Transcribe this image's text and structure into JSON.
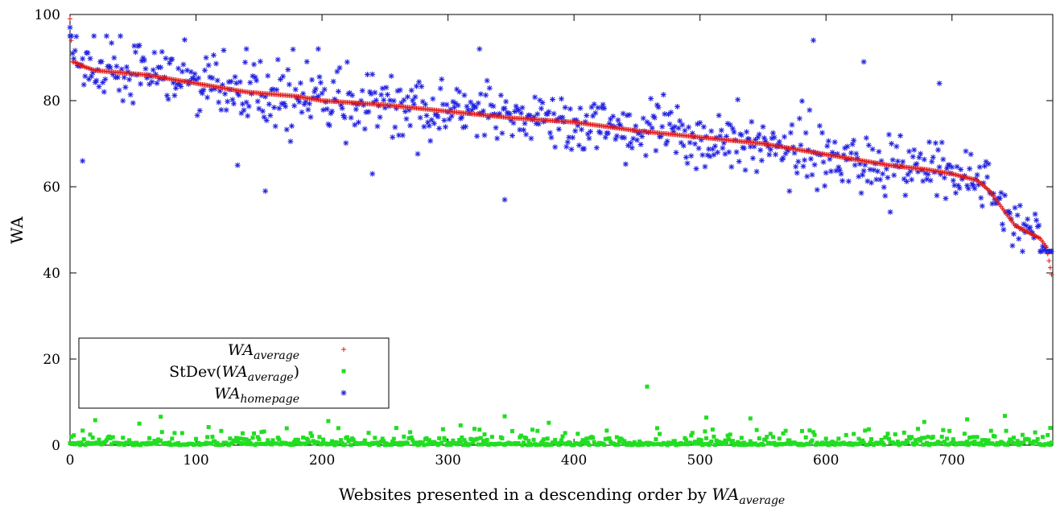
{
  "chart_data": {
    "type": "scatter",
    "xlabel": "Websites presented in a descending order by ",
    "xlabel_symbol": {
      "base": "WA",
      "sub": "average"
    },
    "ylabel": "WA",
    "xlim": [
      0,
      780
    ],
    "ylim": [
      0,
      100
    ],
    "x_ticks": [
      "0",
      "100",
      "200",
      "300",
      "400",
      "500",
      "600",
      "700"
    ],
    "y_ticks": [
      "0",
      "20",
      "40",
      "60",
      "80",
      "100"
    ],
    "grid": false,
    "legend_position": "bottom-left",
    "n_points": 780,
    "series": [
      {
        "name": {
          "base": "WA",
          "sub": "average"
        },
        "marker": "plus",
        "color": "#e01818",
        "x": [
          0,
          2,
          5,
          10,
          20,
          40,
          60,
          80,
          100,
          120,
          140,
          160,
          180,
          200,
          250,
          300,
          350,
          400,
          450,
          500,
          550,
          600,
          650,
          680,
          700,
          720,
          730,
          740,
          750,
          760,
          770,
          775,
          780
        ],
        "y": [
          99,
          89,
          88.8,
          88,
          87,
          86.5,
          86,
          85,
          84,
          83,
          82,
          81.5,
          81,
          80,
          79,
          77.5,
          76,
          75,
          73,
          71.5,
          70,
          67.5,
          65,
          64,
          63,
          61.5,
          59,
          55,
          51,
          49.5,
          48,
          46,
          38
        ]
      },
      {
        "name": {
          "text": "StDev(",
          "base": "WA",
          "sub": "average",
          "after": ")"
        },
        "marker": "square",
        "color": "#22dd22",
        "typical_range": [
          0,
          3
        ],
        "outliers": [
          {
            "x": 20,
            "y": 5.8
          },
          {
            "x": 55,
            "y": 5
          },
          {
            "x": 72,
            "y": 6.6
          },
          {
            "x": 110,
            "y": 4.2
          },
          {
            "x": 205,
            "y": 5.6
          },
          {
            "x": 310,
            "y": 4.6
          },
          {
            "x": 345,
            "y": 6.7
          },
          {
            "x": 380,
            "y": 5.2
          },
          {
            "x": 458,
            "y": 13.6
          },
          {
            "x": 505,
            "y": 6.4
          },
          {
            "x": 540,
            "y": 6.2
          },
          {
            "x": 678,
            "y": 5.4
          },
          {
            "x": 712,
            "y": 6
          },
          {
            "x": 742,
            "y": 6.8
          },
          {
            "x": 778,
            "y": 4
          }
        ]
      },
      {
        "name": {
          "base": "WA",
          "sub": "homepage"
        },
        "marker": "star",
        "color": "#2020e0",
        "typical_spread": 6,
        "outliers": [
          {
            "x": 0,
            "y": 97
          },
          {
            "x": 10,
            "y": 66
          },
          {
            "x": 133,
            "y": 65
          },
          {
            "x": 155,
            "y": 59
          },
          {
            "x": 240,
            "y": 63
          },
          {
            "x": 345,
            "y": 57
          },
          {
            "x": 590,
            "y": 94
          },
          {
            "x": 325,
            "y": 92
          },
          {
            "x": 140,
            "y": 92
          },
          {
            "x": 197,
            "y": 92
          },
          {
            "x": 630,
            "y": 89
          },
          {
            "x": 690,
            "y": 84
          }
        ]
      }
    ]
  }
}
